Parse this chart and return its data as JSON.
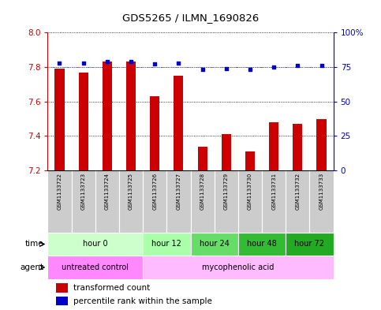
{
  "title": "GDS5265 / ILMN_1690826",
  "samples": [
    "GSM1133722",
    "GSM1133723",
    "GSM1133724",
    "GSM1133725",
    "GSM1133726",
    "GSM1133727",
    "GSM1133728",
    "GSM1133729",
    "GSM1133730",
    "GSM1133731",
    "GSM1133732",
    "GSM1133733"
  ],
  "transformed_count": [
    7.79,
    7.77,
    7.83,
    7.83,
    7.63,
    7.75,
    7.34,
    7.41,
    7.31,
    7.48,
    7.47,
    7.5
  ],
  "percentile_rank": [
    78,
    78,
    79,
    79,
    77,
    78,
    73,
    74,
    73,
    75,
    76,
    76
  ],
  "ylim_left": [
    7.2,
    8.0
  ],
  "ylim_right": [
    0,
    100
  ],
  "yticks_left": [
    7.2,
    7.4,
    7.6,
    7.8,
    8.0
  ],
  "yticks_right": [
    0,
    25,
    50,
    75,
    100
  ],
  "bar_color": "#cc0000",
  "dot_color": "#0000cc",
  "dot_line_value": 75,
  "dot_line_color": "#5555ff",
  "grid_color": "black",
  "bar_bottom": 7.2,
  "time_groups": [
    {
      "label": "hour 0",
      "start": 0,
      "end": 4,
      "color": "#ccffcc"
    },
    {
      "label": "hour 12",
      "start": 4,
      "end": 6,
      "color": "#aaffaa"
    },
    {
      "label": "hour 24",
      "start": 6,
      "end": 8,
      "color": "#66dd66"
    },
    {
      "label": "hour 48",
      "start": 8,
      "end": 10,
      "color": "#33bb33"
    },
    {
      "label": "hour 72",
      "start": 10,
      "end": 12,
      "color": "#22aa22"
    }
  ],
  "agent_groups": [
    {
      "label": "untreated control",
      "start": 0,
      "end": 4,
      "color": "#ff88ff"
    },
    {
      "label": "mycophenolic acid",
      "start": 4,
      "end": 12,
      "color": "#ffbbff"
    }
  ],
  "legend_bar_label": "transformed count",
  "legend_dot_label": "percentile rank within the sample",
  "xlabel_time": "time",
  "xlabel_agent": "agent",
  "background_color": "#ffffff",
  "tick_color_left": "#cc0000",
  "tick_color_right": "#0000cc",
  "sample_bg_color": "#cccccc"
}
